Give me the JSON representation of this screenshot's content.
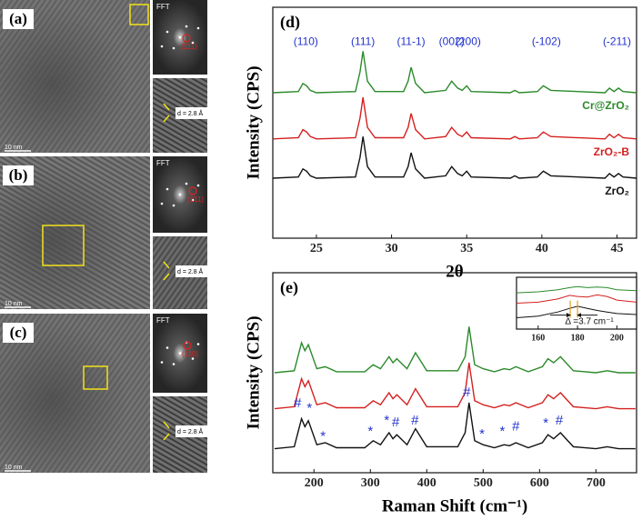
{
  "panels": [
    {
      "label": "(a)",
      "fft_label": "FFT",
      "fft_spot": "(1̄11)",
      "scale_bar": "10 nm",
      "d_spacing": "d = 2.8 Å"
    },
    {
      "label": "(b)",
      "fft_label": "FFT",
      "fft_spot": "(1̄11)",
      "scale_bar": "10 nm",
      "d_spacing": "d = 2.8 Å"
    },
    {
      "label": "(c)",
      "fft_label": "FFT",
      "fft_spot": "(110)",
      "scale_bar": "10 nm",
      "d_spacing": "d = 2.8 Å"
    }
  ],
  "chart_data": [
    {
      "type": "line",
      "panel_label": "(d)",
      "x_label": "2θ",
      "y_label": "Intensity (CPS)",
      "x": [
        22.1,
        23.8,
        24.1,
        24.35,
        24.6,
        25.0,
        27.6,
        27.9,
        28.1,
        28.4,
        28.9,
        30.8,
        31.1,
        31.3,
        31.6,
        32.2,
        33.6,
        34.0,
        34.4,
        34.7,
        35.0,
        35.3,
        37.9,
        38.2,
        38.5,
        39.7,
        40.1,
        40.6,
        44.2,
        44.5,
        44.8,
        45.1,
        45.4,
        46.3
      ],
      "series": [
        {
          "name": "Cr@ZrO₂",
          "color": "#2a8a2a",
          "values": [
            63,
            63.5,
            67,
            66,
            64,
            63,
            63.5,
            72,
            81,
            68,
            63.5,
            63.5,
            68,
            74,
            67,
            63,
            64,
            68,
            65,
            64,
            66,
            63.5,
            63,
            64,
            63,
            63.5,
            66,
            64,
            63,
            65,
            63.5,
            65,
            63.5,
            63
          ]
        },
        {
          "name": "ZrO₂-B",
          "color": "#d42020",
          "values": [
            43,
            43.5,
            47,
            46,
            44,
            43,
            43.5,
            52,
            61,
            48,
            43.5,
            43.5,
            48,
            54,
            47,
            43,
            44,
            48,
            45,
            44,
            46,
            43.5,
            43,
            44,
            43,
            43.5,
            46,
            44,
            43,
            45,
            43.5,
            45,
            43.5,
            43
          ]
        },
        {
          "name": "ZrO₂",
          "color": "#111111",
          "values": [
            26,
            26.5,
            30,
            29,
            27,
            26,
            26.5,
            35,
            44,
            31,
            26.5,
            26.5,
            31,
            37,
            30,
            26,
            27,
            31,
            28,
            27,
            29,
            26.5,
            26,
            27,
            26,
            26.5,
            29,
            27,
            26,
            28,
            26.5,
            28,
            26.5,
            26
          ]
        }
      ],
      "xlim": [
        22.1,
        46.3
      ],
      "ylim": [
        0,
        100
      ],
      "xticks": [
        25,
        30,
        35,
        40,
        45
      ],
      "annotation_color": "#2233cc",
      "annotations": [
        {
          "text": "(110)",
          "x": 24.3,
          "y": 85
        },
        {
          "text": "(111)",
          "x": 28.1,
          "y": 85
        },
        {
          "text": "(11-1)",
          "x": 31.3,
          "y": 85
        },
        {
          "text": "(002)",
          "x": 34.0,
          "y": 85
        },
        {
          "text": "(200)",
          "x": 35.1,
          "y": 85
        },
        {
          "text": "(-102)",
          "x": 40.3,
          "y": 85
        },
        {
          "text": "(-211)",
          "x": 45.0,
          "y": 85
        }
      ]
    },
    {
      "type": "line",
      "panel_label": "(e)",
      "x_label": "Raman Shift (cm⁻¹)",
      "y_label": "Intensity (CPS)",
      "x": [
        130,
        165,
        178,
        184,
        190,
        205,
        220,
        240,
        290,
        305,
        318,
        333,
        340,
        347,
        365,
        380,
        400,
        455,
        468,
        475,
        485,
        500,
        520,
        537,
        547,
        558,
        580,
        605,
        615,
        625,
        637,
        660,
        700,
        720,
        740,
        770
      ],
      "series": [
        {
          "color": "#2a8a2a",
          "values": [
            50,
            51,
            65,
            61,
            64,
            52,
            53,
            50.5,
            50.5,
            54,
            52,
            58,
            55,
            57,
            52,
            60,
            51,
            51,
            58,
            73,
            54,
            52,
            50.5,
            52,
            51.5,
            53,
            50.5,
            53,
            57,
            55,
            58,
            51,
            50,
            51,
            50,
            50
          ]
        },
        {
          "color": "#d42020",
          "values": [
            32,
            33,
            47,
            43,
            46,
            34,
            35,
            32.5,
            32.5,
            36,
            34,
            40,
            37,
            39,
            34,
            42,
            33,
            33,
            40,
            55,
            36,
            34,
            32.5,
            34,
            33.5,
            35,
            32.5,
            35,
            39,
            37,
            40,
            33,
            32,
            33,
            32,
            32
          ]
        },
        {
          "color": "#111111",
          "values": [
            12,
            13,
            27,
            23,
            26,
            14,
            15,
            12.5,
            12.5,
            16,
            14,
            20,
            17,
            19,
            14,
            22,
            13,
            13,
            20,
            35,
            16,
            14,
            12.5,
            14,
            13.5,
            15,
            12.5,
            15,
            19,
            17,
            20,
            13,
            12,
            13,
            12,
            12
          ]
        }
      ],
      "xlim": [
        127,
        772
      ],
      "ylim": [
        0,
        100
      ],
      "xticks": [
        200,
        300,
        400,
        500,
        600,
        700
      ],
      "annotation_color": "#2233cc",
      "annotations": [
        {
          "text": "#",
          "x": 171,
          "y": 34.5
        },
        {
          "text": "*",
          "x": 192,
          "y": 32
        },
        {
          "text": "*",
          "x": 216,
          "y": 18
        },
        {
          "text": "*",
          "x": 300,
          "y": 20.5
        },
        {
          "text": "*",
          "x": 329,
          "y": 26
        },
        {
          "text": "#",
          "x": 345,
          "y": 25
        },
        {
          "text": "#",
          "x": 379,
          "y": 26
        },
        {
          "text": "#",
          "x": 471,
          "y": 40
        },
        {
          "text": "*",
          "x": 498,
          "y": 19
        },
        {
          "text": "*",
          "x": 534,
          "y": 20.5
        },
        {
          "text": "#",
          "x": 558,
          "y": 23
        },
        {
          "text": "*",
          "x": 611,
          "y": 24.5
        },
        {
          "text": "#",
          "x": 635,
          "y": 26
        }
      ]
    },
    {
      "type": "line",
      "x": [
        149,
        160,
        170,
        176,
        180,
        185,
        190,
        195,
        200,
        210
      ],
      "series": [
        {
          "color": "#2a8a2a",
          "values": [
            70,
            72,
            76,
            80,
            82,
            80,
            81,
            80,
            76,
            74
          ]
        },
        {
          "color": "#d42020",
          "values": [
            50,
            52,
            58,
            65,
            63,
            62,
            66,
            63,
            56,
            52
          ]
        },
        {
          "color": "#111111",
          "values": [
            22,
            25,
            33,
            40,
            44,
            40,
            36,
            33,
            30,
            28
          ]
        }
      ],
      "xlim": [
        149,
        210
      ],
      "ylim": [
        0,
        100
      ],
      "xticks": [
        160,
        180,
        200
      ],
      "vlines": [
        176.3,
        180
      ],
      "vline_color": "#e0a020",
      "annotation_color": "#111111",
      "annotations": [
        {
          "text": "Δ =3.7 cm⁻¹",
          "x": 186,
          "y": 14
        }
      ]
    }
  ]
}
